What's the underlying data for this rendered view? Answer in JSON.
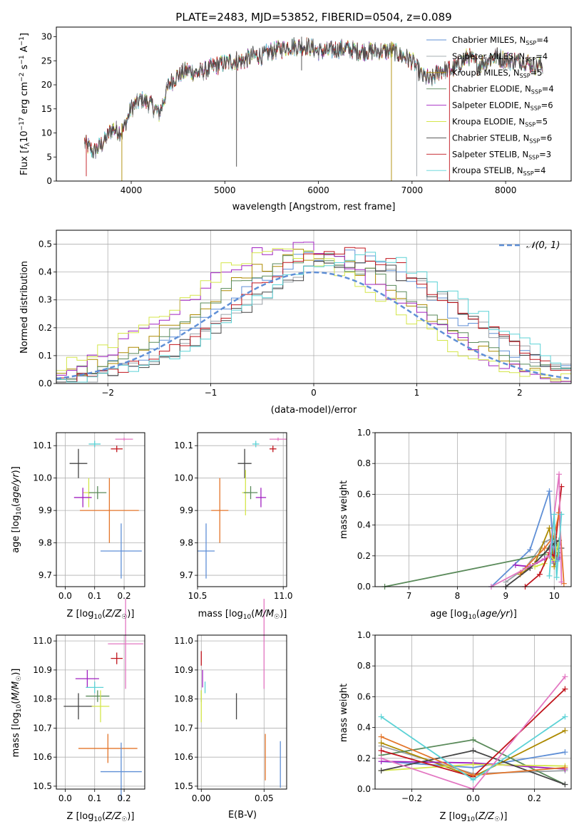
{
  "figure_title": "PLATE=2483, MJD=53852, FIBERID=0504, z=0.089",
  "series_colors": [
    "#5f8fd6",
    "#9aa0a6",
    "#ad8a00",
    "#5a8a5a",
    "#a020c0",
    "#d4e64a",
    "#444444",
    "#c0141c",
    "#5cd2d6"
  ],
  "extra_colors": {
    "orange": "#e3752a",
    "pink": "#e377c2"
  },
  "chart_data": [
    {
      "type": "line",
      "name": "spectrum",
      "title": "PLATE=2483, MJD=53852, FIBERID=0504, z=0.089",
      "xlabel": "wavelength [Angstrom, rest frame]",
      "ylabel": "Flux [f_λ 10^-17 erg cm^-2 s^-1 A^-1]",
      "ylabel_text": "Flux [",
      "ylabel_f": "f",
      "ylabel_lambda": "λ",
      "ylabel_ten": "10",
      "ylabel_e17": "−17",
      "ylabel_erg": " erg cm",
      "ylabel_e2": "−2",
      "ylabel_s": " s",
      "ylabel_e1": "−1",
      "ylabel_A": " A",
      "ylabel_e1b": "−1",
      "ylabel_close": "]",
      "xlim": [
        3200,
        8700
      ],
      "ylim": [
        0,
        32
      ],
      "xticks": [
        4000,
        5000,
        6000,
        7000,
        8000
      ],
      "yticks": [
        0,
        5,
        10,
        15,
        20,
        25,
        30
      ],
      "grid": false,
      "legend": "right",
      "legend_entries": [
        {
          "label": "Chabrier MILES, N",
          "sub": "SSP",
          "tail": "=4"
        },
        {
          "label": "Salpeter MILES, N",
          "sub": "SSP",
          "tail": "=4"
        },
        {
          "label": "Kroupa MILES, N",
          "sub": "SSP",
          "tail": "=5"
        },
        {
          "label": "Chabrier ELODIE, N",
          "sub": "SSP",
          "tail": "=4"
        },
        {
          "label": "Salpeter ELODIE, N",
          "sub": "SSP",
          "tail": "=6"
        },
        {
          "label": "Kroupa ELODIE, N",
          "sub": "SSP",
          "tail": "=5"
        },
        {
          "label": "Chabrier STELIB, N",
          "sub": "SSP",
          "tail": "=6"
        },
        {
          "label": "Salpeter STELIB, N",
          "sub": "SSP",
          "tail": "=3"
        },
        {
          "label": "Kroupa STELIB, N",
          "sub": "SSP",
          "tail": "=4"
        }
      ],
      "spectrum_anchors": [
        [
          3500,
          8
        ],
        [
          3600,
          6
        ],
        [
          3700,
          8
        ],
        [
          3800,
          11
        ],
        [
          3900,
          10
        ],
        [
          4000,
          15
        ],
        [
          4100,
          17
        ],
        [
          4200,
          16
        ],
        [
          4300,
          14
        ],
        [
          4400,
          20
        ],
        [
          4500,
          22
        ],
        [
          4600,
          23
        ],
        [
          4700,
          22.5
        ],
        [
          4800,
          23
        ],
        [
          4900,
          24
        ],
        [
          5000,
          24.5
        ],
        [
          5100,
          25
        ],
        [
          5200,
          25
        ],
        [
          5300,
          26
        ],
        [
          5400,
          26
        ],
        [
          5500,
          27
        ],
        [
          5600,
          27.5
        ],
        [
          5700,
          28
        ],
        [
          5800,
          28
        ],
        [
          5900,
          28
        ],
        [
          6000,
          27
        ],
        [
          6100,
          27
        ],
        [
          6200,
          27.5
        ],
        [
          6300,
          27.5
        ],
        [
          6400,
          27
        ],
        [
          6500,
          27
        ],
        [
          6600,
          27
        ],
        [
          6700,
          27
        ],
        [
          6800,
          27
        ],
        [
          6900,
          26
        ],
        [
          7000,
          25
        ],
        [
          7100,
          22
        ],
        [
          7200,
          21
        ],
        [
          7300,
          23
        ],
        [
          7400,
          23
        ],
        [
          7500,
          24
        ],
        [
          7600,
          26
        ],
        [
          7700,
          24
        ],
        [
          7800,
          25
        ],
        [
          7900,
          26
        ],
        [
          8000,
          25
        ],
        [
          8100,
          25
        ],
        [
          8200,
          25
        ],
        [
          8300,
          24
        ],
        [
          8400,
          24
        ]
      ],
      "spikes": [
        {
          "x": 3520,
          "y0": 1,
          "color": 7
        },
        {
          "x": 3900,
          "y0": 0,
          "color": 2
        },
        {
          "x": 5125,
          "y0": 3,
          "color": 6
        },
        {
          "x": 5820,
          "y0": 23,
          "color": 6
        },
        {
          "x": 6780,
          "y0": 0,
          "color": 2
        },
        {
          "x": 7050,
          "y0": 1,
          "color": 1
        },
        {
          "x": 7400,
          "y0": 0,
          "color": 7
        }
      ]
    },
    {
      "type": "step",
      "name": "residual_histogram",
      "xlabel": "(data-model)/error",
      "ylabel": "Normed distribution",
      "xlim": [
        -2.5,
        2.5
      ],
      "ylim": [
        0,
        0.55
      ],
      "xticks": [
        -2,
        -1,
        0,
        1,
        2
      ],
      "yticks": [
        0.0,
        0.1,
        0.2,
        0.3,
        0.4,
        0.5
      ],
      "grid": true,
      "legend": "top-right",
      "gauss_label": "𝒩(0, 1)",
      "gauss": {
        "mean": 0,
        "sigma": 1
      },
      "peak_centers": [
        0.2,
        0.35,
        -0.05,
        0.0,
        -0.2,
        -0.3,
        0.35,
        0.3,
        0.45
      ],
      "peak_heights": [
        0.47,
        0.43,
        0.46,
        0.45,
        0.49,
        0.47,
        0.44,
        0.47,
        0.46
      ],
      "bin_width": 0.1
    },
    {
      "type": "errorbar",
      "name": "age_vs_metallicity",
      "xlabel": "Z [log10(Z/Z☉)]",
      "ylabel": "age [log10(age/yr)]",
      "xlim": [
        -0.03,
        0.27
      ],
      "ylim": [
        9.665,
        10.14
      ],
      "xticks": [
        0.0,
        0.1,
        0.2
      ],
      "yticks": [
        9.7,
        9.8,
        9.9,
        10.0,
        10.1
      ],
      "grid": true,
      "points": [
        {
          "x": 0.1,
          "y": 10.105,
          "xerr": 0.02,
          "yerr": 0.01,
          "c": "#5cd2d6"
        },
        {
          "x": 0.2,
          "y": 10.12,
          "xerr": 0.03,
          "yerr": 0.005,
          "c": "#e377c2"
        },
        {
          "x": 0.175,
          "y": 10.09,
          "xerr": 0.02,
          "yerr": 0.01,
          "c": "#c0141c"
        },
        {
          "x": 0.045,
          "y": 10.045,
          "xerr": 0.03,
          "yerr": 0.045,
          "c": "#444444"
        },
        {
          "x": 0.08,
          "y": 9.955,
          "xerr": 0.02,
          "yerr": 0.045,
          "c": "#d4e64a"
        },
        {
          "x": 0.11,
          "y": 9.955,
          "xerr": 0.03,
          "yerr": 0.02,
          "c": "#5a8a5a"
        },
        {
          "x": 0.06,
          "y": 9.94,
          "xerr": 0.03,
          "yerr": 0.03,
          "c": "#a020c0"
        },
        {
          "x": 0.15,
          "y": 9.9,
          "xerr": 0.1,
          "yerr": 0.1,
          "c": "#e3752a"
        },
        {
          "x": 0.19,
          "y": 9.775,
          "xerr": 0.07,
          "yerr": 0.085,
          "c": "#5f8fd6"
        }
      ]
    },
    {
      "type": "errorbar",
      "name": "age_vs_mass",
      "xlabel": "mass [log10(M/M☉)]",
      "ylabel": "",
      "xlim": [
        10.5,
        11.02
      ],
      "ylim": [
        9.665,
        10.14
      ],
      "xticks": [
        10.5,
        11.0
      ],
      "yticks": [
        9.7,
        9.8,
        9.9,
        10.0,
        10.1
      ],
      "grid": true,
      "points": [
        {
          "x": 10.84,
          "y": 10.105,
          "xerr": 0.02,
          "yerr": 0.01,
          "c": "#5cd2d6"
        },
        {
          "x": 10.97,
          "y": 10.12,
          "xerr": 0.05,
          "yerr": 0.005,
          "c": "#e377c2"
        },
        {
          "x": 10.94,
          "y": 10.09,
          "xerr": 0.02,
          "yerr": 0.01,
          "c": "#c0141c"
        },
        {
          "x": 10.775,
          "y": 10.045,
          "xerr": 0.04,
          "yerr": 0.045,
          "c": "#444444"
        },
        {
          "x": 10.78,
          "y": 9.955,
          "xerr": 0.02,
          "yerr": 0.07,
          "c": "#d4e64a"
        },
        {
          "x": 10.81,
          "y": 9.955,
          "xerr": 0.04,
          "yerr": 0.02,
          "c": "#5a8a5a"
        },
        {
          "x": 10.87,
          "y": 9.94,
          "xerr": 0.03,
          "yerr": 0.03,
          "c": "#a020c0"
        },
        {
          "x": 10.63,
          "y": 9.9,
          "xerr": 0.05,
          "yerr": 0.1,
          "c": "#e3752a"
        },
        {
          "x": 10.55,
          "y": 9.775,
          "xerr": 0.05,
          "yerr": 0.085,
          "c": "#5f8fd6"
        }
      ]
    },
    {
      "type": "line",
      "name": "mass_weight_vs_age",
      "xlabel": "age [log10(age/yr)]",
      "ylabel": "mass weight",
      "xlim": [
        6.3,
        10.35
      ],
      "ylim": [
        0,
        1
      ],
      "xticks": [
        7,
        8,
        9,
        10
      ],
      "yticks": [
        0.0,
        0.2,
        0.4,
        0.6,
        0.8,
        1.0
      ],
      "grid": true,
      "series": [
        {
          "c": "#5f8fd6",
          "x": [
            8.7,
            9.5,
            9.9,
            10.0,
            10.1
          ],
          "y": [
            0.0,
            0.24,
            0.62,
            0.15,
            0.18
          ]
        },
        {
          "c": "#9aa0a6",
          "x": [
            9.0,
            9.4,
            9.8,
            10.0,
            10.1
          ],
          "y": [
            0.03,
            0.12,
            0.29,
            0.32,
            0.25
          ]
        },
        {
          "c": "#ad8a00",
          "x": [
            9.3,
            9.6,
            9.9,
            10.0,
            10.1
          ],
          "y": [
            0.08,
            0.15,
            0.38,
            0.13,
            0.25
          ]
        },
        {
          "c": "#5a8a5a",
          "x": [
            6.5,
            9.8,
            10.0,
            10.1
          ],
          "y": [
            0.0,
            0.21,
            0.32,
            0.22
          ]
        },
        {
          "c": "#a020c0",
          "x": [
            9.2,
            9.5,
            9.8,
            9.9,
            10.0,
            10.1
          ],
          "y": [
            0.14,
            0.13,
            0.18,
            0.2,
            0.16,
            0.19
          ]
        },
        {
          "c": "#d4e64a",
          "x": [
            9.6,
            9.8,
            9.9,
            10.0,
            10.1
          ],
          "y": [
            0.13,
            0.15,
            0.21,
            0.17,
            0.3
          ]
        },
        {
          "c": "#444444",
          "x": [
            9.0,
            9.5,
            9.9,
            10.0,
            10.1,
            10.15
          ],
          "y": [
            0.0,
            0.12,
            0.25,
            0.28,
            0.3,
            0.25
          ]
        },
        {
          "c": "#c0141c",
          "x": [
            9.4,
            9.7,
            9.9,
            10.0,
            10.15
          ],
          "y": [
            0.0,
            0.08,
            0.22,
            0.2,
            0.65
          ]
        },
        {
          "c": "#e3752a",
          "x": [
            9.3,
            9.8,
            10.0,
            10.1,
            10.2
          ],
          "y": [
            0.09,
            0.25,
            0.33,
            0.48,
            0.02
          ]
        },
        {
          "c": "#e377c2",
          "x": [
            8.7,
            9.9,
            10.1,
            10.15
          ],
          "y": [
            0.0,
            0.2,
            0.73,
            0.03
          ]
        },
        {
          "c": "#5cd2d6",
          "x": [
            9.9,
            10.0,
            10.05,
            10.15
          ],
          "y": [
            0.07,
            0.47,
            0.06,
            0.47
          ]
        }
      ]
    },
    {
      "type": "errorbar",
      "name": "mass_vs_metallicity",
      "xlabel": "Z [log10(Z/Z☉)]",
      "ylabel": "mass [log10(M/M☉)]",
      "xlim": [
        -0.03,
        0.27
      ],
      "ylim": [
        10.49,
        11.02
      ],
      "xticks": [
        0.0,
        0.1,
        0.2
      ],
      "yticks": [
        10.5,
        10.6,
        10.7,
        10.8,
        10.9,
        11.0
      ],
      "grid": true,
      "points": [
        {
          "x": 0.205,
          "y": 10.99,
          "xerr": 0.06,
          "yerr": 0.155,
          "c": "#e377c2"
        },
        {
          "x": 0.175,
          "y": 10.94,
          "xerr": 0.02,
          "yerr": 0.02,
          "c": "#c0141c"
        },
        {
          "x": 0.075,
          "y": 10.87,
          "xerr": 0.04,
          "yerr": 0.03,
          "c": "#a020c0"
        },
        {
          "x": 0.1,
          "y": 10.84,
          "xerr": 0.03,
          "yerr": 0.02,
          "c": "#5cd2d6"
        },
        {
          "x": 0.11,
          "y": 10.81,
          "xerr": 0.04,
          "yerr": 0.02,
          "c": "#5a8a5a"
        },
        {
          "x": 0.045,
          "y": 10.775,
          "xerr": 0.05,
          "yerr": 0.045,
          "c": "#444444"
        },
        {
          "x": 0.12,
          "y": 10.775,
          "xerr": 0.03,
          "yerr": 0.055,
          "c": "#d4e64a"
        },
        {
          "x": 0.145,
          "y": 10.63,
          "xerr": 0.1,
          "yerr": 0.05,
          "c": "#e3752a"
        },
        {
          "x": 0.19,
          "y": 10.55,
          "xerr": 0.07,
          "yerr": 0.1,
          "c": "#5f8fd6"
        }
      ]
    },
    {
      "type": "errorbar",
      "name": "mass_vs_ebv",
      "xlabel": "E(B-V)",
      "ylabel": "",
      "xlim": [
        -0.003,
        0.068
      ],
      "ylim": [
        10.49,
        11.02
      ],
      "xticks": [
        0.0,
        0.05
      ],
      "yticks": [
        10.5,
        10.6,
        10.7,
        10.8,
        10.9,
        11.0
      ],
      "grid": true,
      "points": [
        {
          "x": 0.05,
          "y": 10.99,
          "xerr": 0.0,
          "yerr": 0.155,
          "c": "#e377c2"
        },
        {
          "x": 0.0,
          "y": 10.94,
          "xerr": 0.0,
          "yerr": 0.025,
          "c": "#c0141c"
        },
        {
          "x": 0.001,
          "y": 10.87,
          "xerr": 0.0,
          "yerr": 0.03,
          "c": "#a020c0"
        },
        {
          "x": 0.003,
          "y": 10.84,
          "xerr": 0.0,
          "yerr": 0.02,
          "c": "#5cd2d6"
        },
        {
          "x": 0.0,
          "y": 10.81,
          "xerr": 0.0,
          "yerr": 0.02,
          "c": "#5a8a5a"
        },
        {
          "x": 0.028,
          "y": 10.775,
          "xerr": 0.0,
          "yerr": 0.045,
          "c": "#444444"
        },
        {
          "x": 0.0,
          "y": 10.775,
          "xerr": 0.0,
          "yerr": 0.055,
          "c": "#d4e64a"
        },
        {
          "x": 0.051,
          "y": 10.6,
          "xerr": 0.0,
          "yerr": 0.08,
          "c": "#e3752a"
        },
        {
          "x": 0.063,
          "y": 10.575,
          "xerr": 0.0,
          "yerr": 0.08,
          "c": "#5f8fd6"
        }
      ]
    },
    {
      "type": "line",
      "name": "mass_weight_vs_metallicity",
      "xlabel": "Z [log10(Z/Z☉)]",
      "ylabel": "mass weight",
      "xlim": [
        -0.32,
        0.32
      ],
      "ylim": [
        0,
        1
      ],
      "xticks": [
        -0.2,
        0.0,
        0.2
      ],
      "yticks": [
        0.0,
        0.2,
        0.4,
        0.6,
        0.8,
        1.0
      ],
      "grid": true,
      "series": [
        {
          "c": "#5f8fd6",
          "x": [
            -0.3,
            0.0,
            0.3
          ],
          "y": [
            0.18,
            0.14,
            0.24
          ]
        },
        {
          "c": "#9aa0a6",
          "x": [
            -0.3,
            0.0,
            0.3
          ],
          "y": [
            0.28,
            0.1,
            0.12
          ]
        },
        {
          "c": "#ad8a00",
          "x": [
            -0.3,
            0.0,
            0.3
          ],
          "y": [
            0.3,
            0.08,
            0.38
          ]
        },
        {
          "c": "#5a8a5a",
          "x": [
            -0.3,
            0.0,
            0.3
          ],
          "y": [
            0.22,
            0.32,
            0.03
          ]
        },
        {
          "c": "#a020c0",
          "x": [
            -0.3,
            0.0,
            0.3
          ],
          "y": [
            0.18,
            0.17,
            0.13
          ]
        },
        {
          "c": "#d4e64a",
          "x": [
            -0.3,
            0.0,
            0.3
          ],
          "y": [
            0.12,
            0.16,
            0.15
          ]
        },
        {
          "c": "#444444",
          "x": [
            -0.3,
            0.0,
            0.3
          ],
          "y": [
            0.12,
            0.25,
            0.03
          ]
        },
        {
          "c": "#c0141c",
          "x": [
            -0.3,
            0.0,
            0.3
          ],
          "y": [
            0.25,
            0.08,
            0.65
          ]
        },
        {
          "c": "#e3752a",
          "x": [
            -0.3,
            0.0,
            0.3
          ],
          "y": [
            0.34,
            0.09,
            0.14
          ]
        },
        {
          "c": "#e377c2",
          "x": [
            -0.3,
            0.0,
            0.3
          ],
          "y": [
            0.2,
            0.0,
            0.73
          ]
        },
        {
          "c": "#5cd2d6",
          "x": [
            -0.3,
            0.0,
            0.3
          ],
          "y": [
            0.47,
            0.06,
            0.47
          ]
        }
      ]
    }
  ]
}
